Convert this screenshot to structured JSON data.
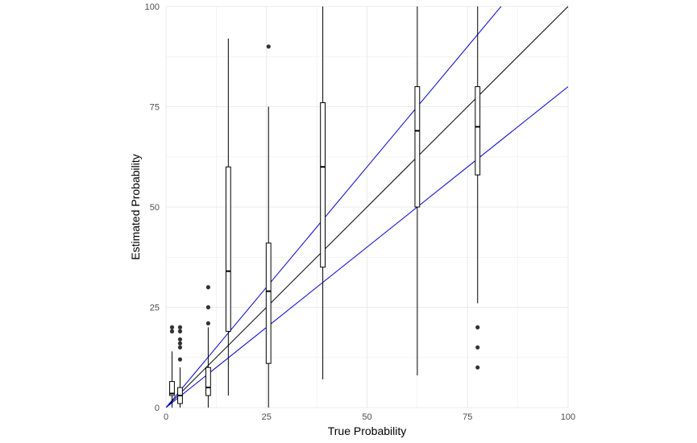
{
  "chart_data": {
    "type": "boxplot",
    "xlabel": "True Probability",
    "ylabel": "Estimated Probability",
    "xlim": [
      0,
      100
    ],
    "ylim": [
      0,
      100
    ],
    "x_ticks": [
      0,
      25,
      50,
      75,
      100
    ],
    "y_ticks": [
      0,
      25,
      50,
      75,
      100
    ],
    "grid": true,
    "colors": {
      "identity_line": "#000000",
      "bound_lines": "#0000cc",
      "box": "#000000",
      "outlier": "#333333",
      "grid": "#ebebeb"
    },
    "boxes": [
      {
        "x": 1.5,
        "min": 0,
        "q1": 3,
        "median": 3.5,
        "q3": 6.5,
        "max": 14,
        "outliers": [
          19,
          20
        ]
      },
      {
        "x": 3.5,
        "min": 0,
        "q1": 1,
        "median": 3,
        "q3": 5,
        "max": 10,
        "outliers": [
          12,
          15,
          16,
          17,
          19,
          20
        ]
      },
      {
        "x": 10.5,
        "min": 0,
        "q1": 3,
        "median": 5,
        "q3": 10,
        "max": 20,
        "outliers": [
          21,
          25,
          30
        ]
      },
      {
        "x": 15.5,
        "min": 3,
        "q1": 19,
        "median": 34,
        "q3": 60,
        "max": 92,
        "outliers": []
      },
      {
        "x": 25.5,
        "min": 0,
        "q1": 11,
        "median": 29,
        "q3": 41,
        "max": 75,
        "outliers": [
          90
        ]
      },
      {
        "x": 39,
        "min": 7,
        "q1": 35,
        "median": 60,
        "q3": 76,
        "max": 100,
        "outliers": []
      },
      {
        "x": 62.5,
        "min": 8,
        "q1": 50,
        "median": 69,
        "q3": 80,
        "max": 100,
        "outliers": []
      },
      {
        "x": 77.5,
        "min": 26,
        "q1": 58,
        "median": 70,
        "q3": 80,
        "max": 100,
        "outliers": [
          10,
          15,
          20
        ]
      }
    ],
    "lines": [
      {
        "role": "identity",
        "slope": 1.0,
        "intercept": 0
      },
      {
        "role": "upper-bound",
        "slope": 1.2,
        "intercept": 0
      },
      {
        "role": "lower-bound",
        "slope": 0.8,
        "intercept": 0
      }
    ]
  }
}
